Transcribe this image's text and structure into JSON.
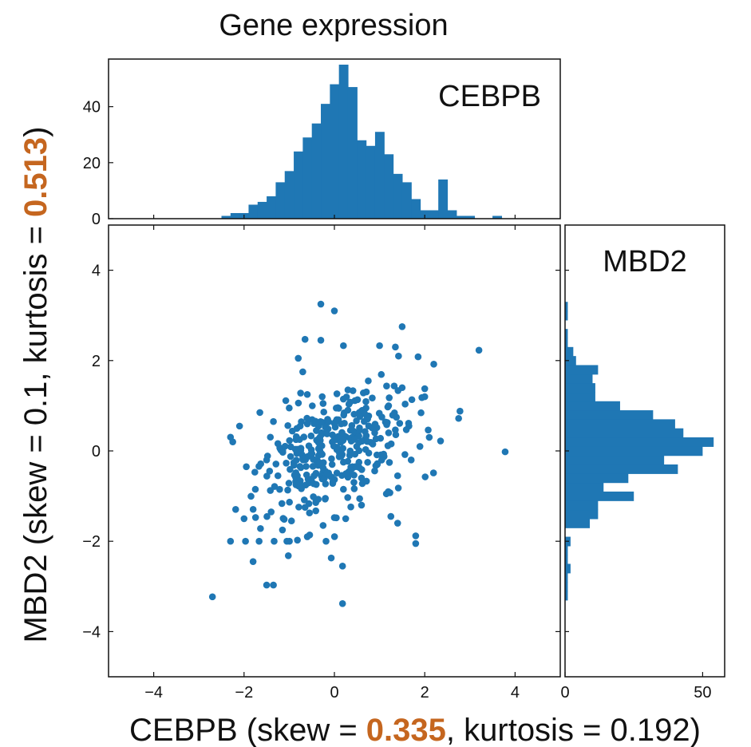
{
  "title": "Gene expression",
  "colors": {
    "series": "#1f77b4",
    "highlight": "#c5661f",
    "text": "#111111"
  },
  "chart_data": [
    {
      "type": "scatter",
      "panel": "main",
      "xlabel": {
        "prefix": "CEBPB (skew = ",
        "skew": "0.335",
        "suffix": ", kurtosis = 0.192)"
      },
      "ylabel": {
        "prefix": "MBD2 (skew = 0.1, kurtosis = ",
        "kurtosis": "0.513",
        "suffix": ")"
      },
      "xlim": [
        -5,
        5
      ],
      "ylim": [
        -5,
        5
      ],
      "xticks": [
        -4,
        -2,
        0,
        2,
        4
      ],
      "yticks": [
        -4,
        -2,
        0,
        2,
        4
      ],
      "tick_labels_x": [
        "−4",
        "−2",
        "0",
        "2",
        "4"
      ],
      "tick_labels_y": [
        "−4",
        "−2",
        "0",
        "2",
        "4"
      ],
      "grid": false,
      "points_count": 400,
      "points": [
        [
          -2.7,
          -3.23
        ],
        [
          3.78,
          -0.02
        ],
        [
          3.2,
          2.23
        ],
        [
          -0.3,
          3.25
        ],
        [
          0,
          3.1
        ],
        [
          1.5,
          2.75
        ],
        [
          0.18,
          -3.38
        ],
        [
          -1.35,
          -2.97
        ],
        [
          -1.5,
          -2.97
        ],
        [
          -1.8,
          -2.45
        ],
        [
          -1.02,
          -2.32
        ],
        [
          -0.07,
          -2.37
        ],
        [
          0.18,
          -2.55
        ],
        [
          1.8,
          -1.88
        ],
        [
          1.8,
          -2.05
        ],
        [
          -2.0,
          -1.5
        ],
        [
          2.35,
          0.22
        ],
        [
          2.75,
          0.72
        ],
        [
          2.78,
          0.88
        ],
        [
          2.2,
          1.92
        ],
        [
          1.35,
          2.3
        ],
        [
          1.0,
          2.33
        ],
        [
          -0.65,
          2.47
        ],
        [
          -0.3,
          2.45
        ],
        [
          0.2,
          2.33
        ],
        [
          -0.8,
          2.05
        ],
        [
          -0.7,
          1.75
        ],
        [
          1.5,
          1.4
        ],
        [
          1.2,
          1.0
        ],
        [
          2.0,
          1.2
        ],
        [
          1.65,
          0.55
        ],
        [
          2.1,
          0.3
        ],
        [
          1.7,
          -0.2
        ],
        [
          1.4,
          -0.55
        ],
        [
          1.15,
          -0.95
        ],
        [
          1.25,
          -1.45
        ],
        [
          1.4,
          -1.6
        ],
        [
          0.6,
          -1.2
        ],
        [
          0.25,
          -1.5
        ],
        [
          -0.25,
          -1.65
        ],
        [
          -0.6,
          -1.9
        ],
        [
          -1.15,
          -1.75
        ],
        [
          -1.4,
          -1.35
        ],
        [
          -1.75,
          -0.85
        ],
        [
          -1.95,
          -0.35
        ],
        [
          -2.25,
          0.2
        ],
        [
          -2.1,
          0.55
        ],
        [
          -1.65,
          0.85
        ],
        [
          -1.35,
          0.65
        ],
        [
          -1.0,
          0.95
        ],
        [
          -0.6,
          1.25
        ],
        [
          -0.25,
          1.05
        ],
        [
          0.3,
          1.35
        ],
        [
          0.75,
          1.55
        ],
        [
          0.55,
          0.85
        ],
        [
          0.15,
          0.6
        ],
        [
          -0.4,
          0.45
        ],
        [
          -0.85,
          0.25
        ],
        [
          -1.2,
          0.05
        ],
        [
          -1.5,
          -0.2
        ],
        [
          -1.25,
          -0.55
        ],
        [
          -0.85,
          -0.75
        ],
        [
          -0.45,
          -0.55
        ],
        [
          -0.05,
          -0.3
        ],
        [
          0.35,
          -0.05
        ],
        [
          0.85,
          0.15
        ],
        [
          1.2,
          0.4
        ],
        [
          0.95,
          -0.3
        ],
        [
          0.6,
          -0.6
        ],
        [
          0.2,
          -0.85
        ],
        [
          -0.2,
          -1.05
        ],
        [
          -0.65,
          -1.25
        ],
        [
          -0.95,
          -1.55
        ],
        [
          -0.35,
          0.05
        ],
        [
          0.05,
          0.25
        ],
        [
          0.45,
          0.4
        ],
        [
          -0.15,
          0.7
        ],
        [
          -0.6,
          0.6
        ],
        [
          0.7,
          0.95
        ],
        [
          1.05,
          0.75
        ],
        [
          0.4,
          -0.35
        ],
        [
          -0.2,
          -0.45
        ]
      ]
    },
    {
      "type": "bar",
      "panel": "top-marginal",
      "label": "CEBPB",
      "orientation": "vertical",
      "xlim": [
        -5,
        5
      ],
      "ylim": [
        0,
        57
      ],
      "yticks": [
        0,
        20,
        40
      ],
      "tick_labels_y": [
        "0",
        "20",
        "40"
      ],
      "bin_edges": [
        -2.5,
        -2.3,
        -2.1,
        -1.9,
        -1.7,
        -1.5,
        -1.3,
        -1.1,
        -0.9,
        -0.7,
        -0.5,
        -0.3,
        -0.1,
        0.1,
        0.3,
        0.5,
        0.7,
        0.9,
        1.1,
        1.3,
        1.5,
        1.7,
        1.9,
        2.1,
        2.3,
        2.5,
        2.7,
        2.9,
        3.1,
        3.3,
        3.5,
        3.7
      ],
      "counts": [
        1,
        2,
        2,
        5,
        6,
        8,
        13,
        17,
        24,
        29,
        34,
        41,
        48,
        55,
        47,
        28,
        26,
        31,
        23,
        16,
        13,
        7,
        3,
        3,
        14,
        3,
        1,
        1,
        0,
        0,
        1
      ]
    },
    {
      "type": "bar",
      "panel": "right-marginal",
      "label": "MBD2",
      "orientation": "horizontal",
      "ylim": [
        -5,
        5
      ],
      "xlim": [
        0,
        58
      ],
      "xticks": [
        0,
        50
      ],
      "tick_labels_x": [
        "0",
        "50"
      ],
      "bin_edges": [
        -3.3,
        -3.1,
        -2.9,
        -2.7,
        -2.5,
        -2.3,
        -2.1,
        -1.9,
        -1.7,
        -1.5,
        -1.3,
        -1.1,
        -0.9,
        -0.7,
        -0.5,
        -0.3,
        -0.1,
        0.1,
        0.3,
        0.5,
        0.7,
        0.9,
        1.1,
        1.3,
        1.5,
        1.7,
        1.9,
        2.1,
        2.3,
        2.5,
        2.7,
        2.9,
        3.1,
        3.3
      ],
      "counts": [
        1,
        1,
        1,
        2,
        1,
        1,
        2,
        0,
        9,
        12,
        12,
        25,
        14,
        23,
        41,
        36,
        50,
        54,
        43,
        40,
        32,
        20,
        11,
        11,
        10,
        12,
        4,
        3,
        1,
        1,
        0,
        1,
        1
      ]
    }
  ]
}
